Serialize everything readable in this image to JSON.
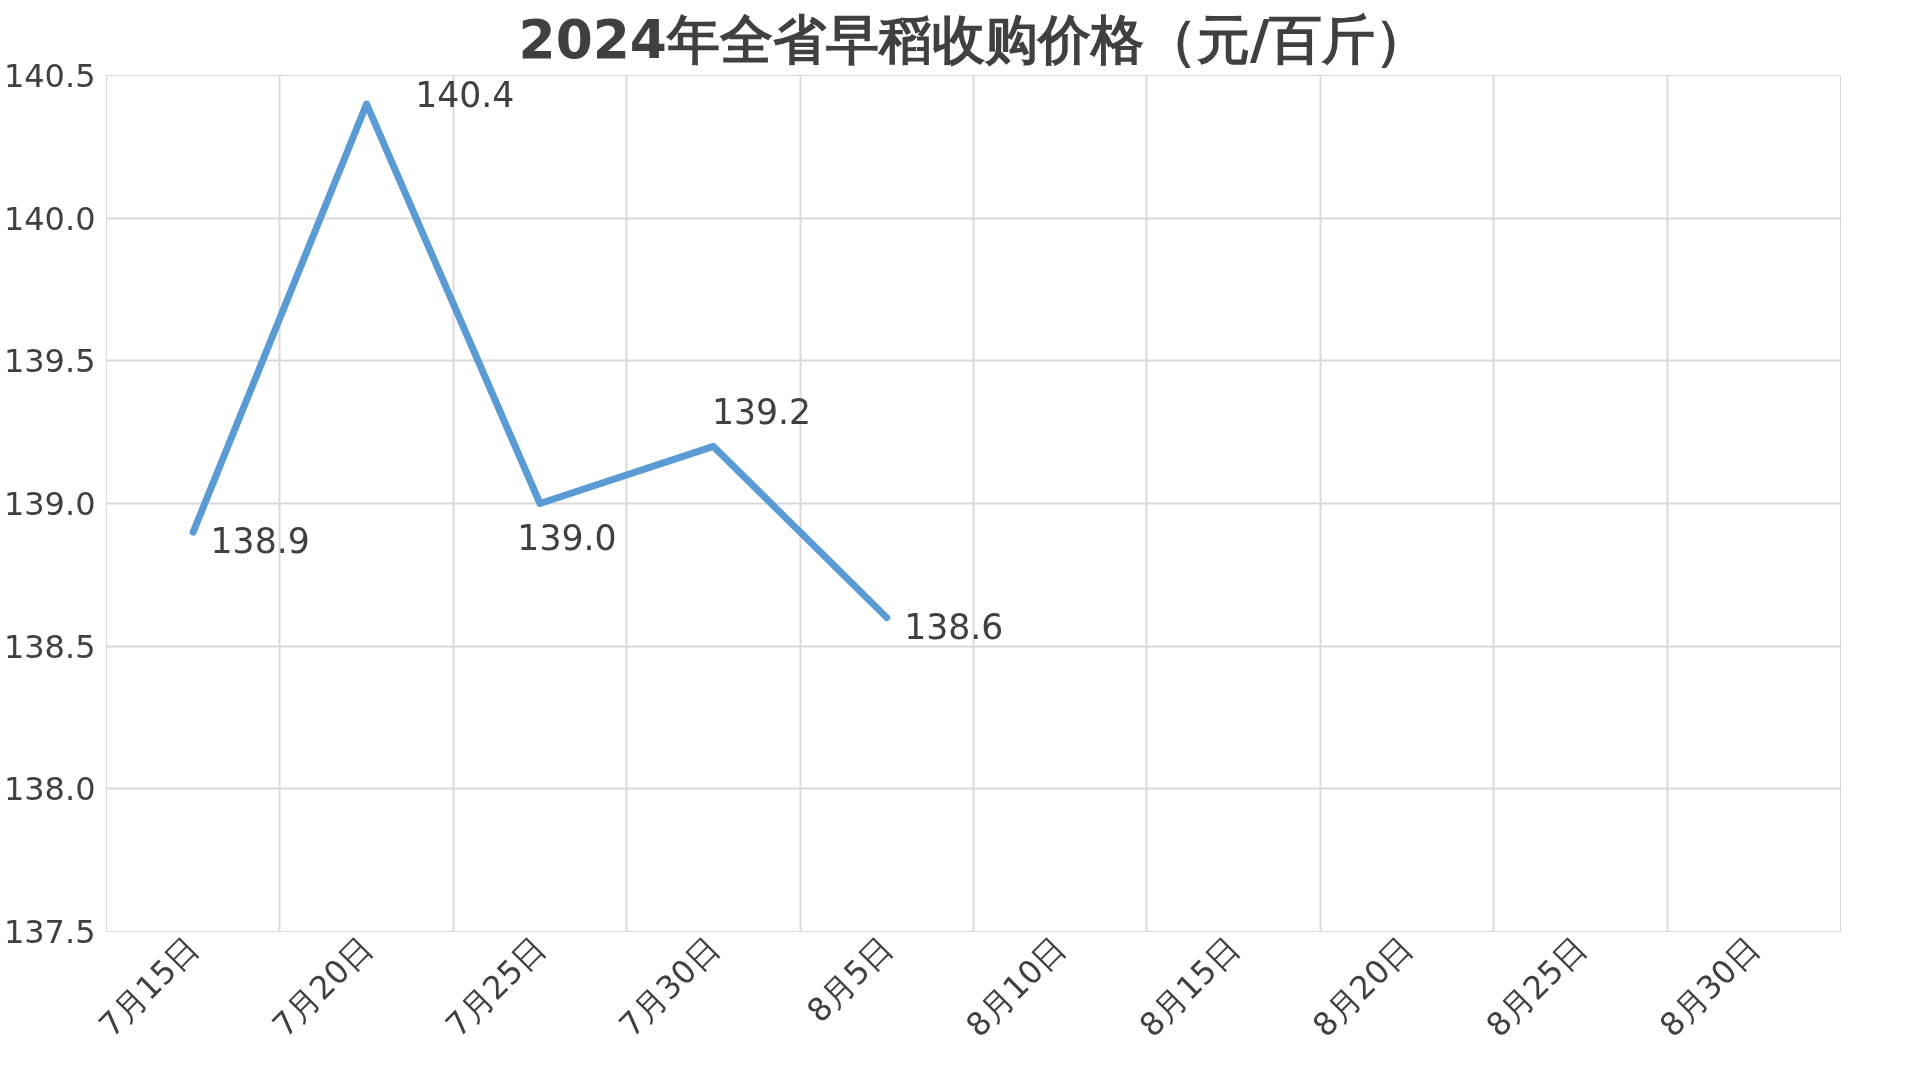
{
  "chart_data": {
    "type": "line",
    "title": "2024年全省早稻收购价格（元/百斤）",
    "categories": [
      "7月15日",
      "7月20日",
      "7月25日",
      "7月30日",
      "8月5日",
      "8月10日",
      "8月15日",
      "8月20日",
      "8月25日",
      "8月30日"
    ],
    "series": [
      {
        "color": "#5b9bd5",
        "values": [
          138.9,
          140.4,
          139.0,
          139.2,
          138.6,
          null,
          null,
          null,
          null,
          null
        ],
        "value_labels": [
          "138.9",
          "140.4",
          "139.0",
          "139.2",
          "138.6",
          null,
          null,
          null,
          null,
          null
        ]
      }
    ],
    "ylim": [
      137.5,
      140.5
    ],
    "yticks": [
      137.5,
      {
        "value": 138,
        "label": "138.0"
      },
      138.5,
      {
        "value": 139,
        "label": "139.0"
      },
      139.5,
      {
        "value": 140,
        "label": "140.0"
      },
      140.5
    ],
    "grid": true,
    "marker": "none",
    "line_style": "solid"
  }
}
